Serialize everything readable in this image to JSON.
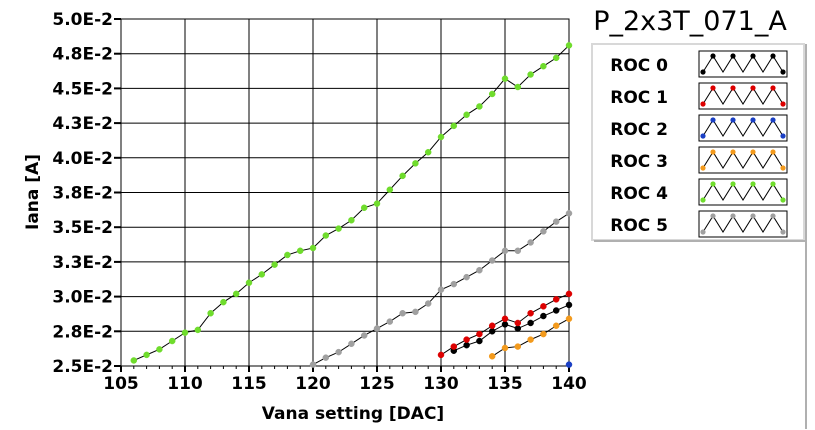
{
  "chart_data": {
    "type": "scatter",
    "title": "P_2x3T_071_A",
    "xlabel": "Vana setting [DAC]",
    "ylabel": "Iana [A]",
    "xlim": [
      105,
      140
    ],
    "ylim": [
      0.025,
      0.05
    ],
    "x_ticks": [
      105,
      110,
      115,
      120,
      125,
      130,
      135,
      140
    ],
    "x_tick_labels": [
      "105",
      "110",
      "115",
      "120",
      "125",
      "130",
      "135",
      "140"
    ],
    "y_ticks": [
      0.025,
      0.0275,
      0.03,
      0.0325,
      0.035,
      0.0375,
      0.04,
      0.0425,
      0.045,
      0.0475,
      0.05
    ],
    "y_tick_labels": [
      "2.5E-2",
      "2.8E-2",
      "3.0E-2",
      "3.3E-2",
      "3.5E-2",
      "3.8E-2",
      "4.0E-2",
      "4.3E-2",
      "4.5E-2",
      "4.8E-2",
      "5.0E-2"
    ],
    "grid": true,
    "legend_position": "right",
    "series": [
      {
        "name": "ROC 0",
        "color": "#000000",
        "x": [
          131,
          132,
          133,
          134,
          135,
          136,
          137,
          138,
          139,
          140
        ],
        "y": [
          0.0261,
          0.0265,
          0.0268,
          0.0275,
          0.028,
          0.0277,
          0.0281,
          0.0286,
          0.029,
          0.0294
        ]
      },
      {
        "name": "ROC 1",
        "color": "#dd0000",
        "x": [
          130,
          131,
          132,
          133,
          134,
          135,
          136,
          137,
          138,
          139,
          140
        ],
        "y": [
          0.0258,
          0.0264,
          0.0269,
          0.0273,
          0.0279,
          0.0284,
          0.0281,
          0.0288,
          0.0293,
          0.0298,
          0.0302
        ]
      },
      {
        "name": "ROC 2",
        "color": "#1a3fc4",
        "x": [
          140
        ],
        "y": [
          0.0251
        ]
      },
      {
        "name": "ROC 3",
        "color": "#f39a1c",
        "x": [
          134,
          135,
          136,
          137,
          138,
          139,
          140
        ],
        "y": [
          0.0257,
          0.0263,
          0.0264,
          0.0269,
          0.0273,
          0.0279,
          0.0284
        ]
      },
      {
        "name": "ROC 4",
        "color": "#6fdc2c",
        "x": [
          106,
          107,
          108,
          109,
          110,
          111,
          112,
          113,
          114,
          115,
          116,
          117,
          118,
          119,
          120,
          121,
          122,
          123,
          124,
          125,
          126,
          127,
          128,
          129,
          130,
          131,
          132,
          133,
          134,
          135,
          136,
          137,
          138,
          139,
          140
        ],
        "y": [
          0.0254,
          0.0258,
          0.0262,
          0.0268,
          0.0274,
          0.0276,
          0.0288,
          0.0296,
          0.0302,
          0.031,
          0.0316,
          0.0323,
          0.033,
          0.0333,
          0.0335,
          0.0344,
          0.0349,
          0.0355,
          0.0364,
          0.0367,
          0.0377,
          0.0387,
          0.0396,
          0.0404,
          0.0415,
          0.0423,
          0.0431,
          0.0437,
          0.0446,
          0.0457,
          0.0451,
          0.046,
          0.0466,
          0.0472,
          0.0481
        ]
      },
      {
        "name": "ROC 5",
        "color": "#a0a0a0",
        "x": [
          120,
          121,
          122,
          123,
          124,
          125,
          126,
          127,
          128,
          129,
          130,
          131,
          132,
          133,
          134,
          135,
          136,
          137,
          138,
          139,
          140
        ],
        "y": [
          0.0251,
          0.0256,
          0.026,
          0.0266,
          0.0272,
          0.0277,
          0.0282,
          0.0288,
          0.0289,
          0.0295,
          0.0305,
          0.0309,
          0.0314,
          0.0319,
          0.0326,
          0.0333,
          0.0333,
          0.0339,
          0.0347,
          0.0354,
          0.036
        ]
      }
    ]
  }
}
